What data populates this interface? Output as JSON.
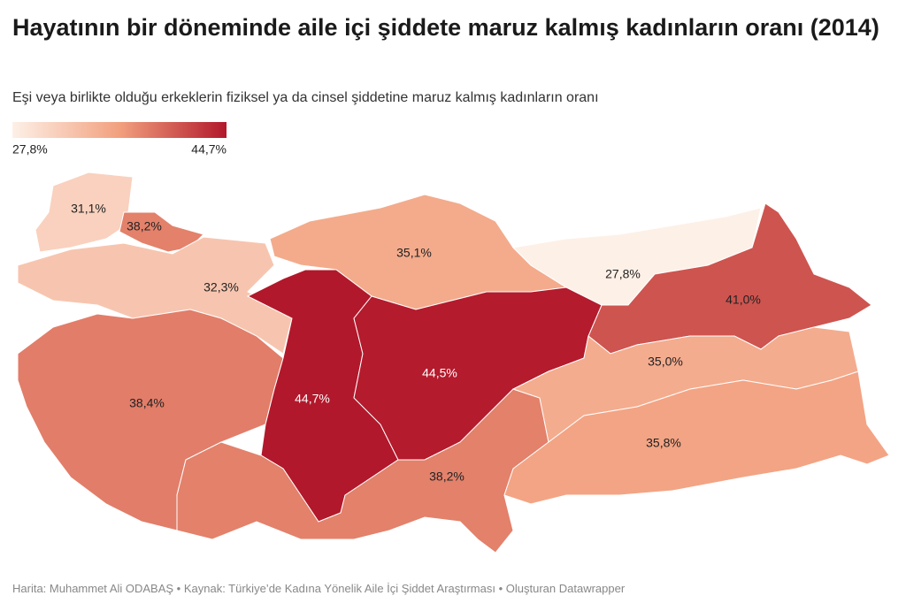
{
  "chart_data": {
    "type": "choropleth",
    "title": "Hayatının bir döneminde aile içi şiddete maruz kalmış kadınların oranı (2014)",
    "subtitle": "Eşi veya birlikte olduğu erkeklerin fiziksel ya da cinsel şiddetine maruz kalmış kadınların oranı",
    "colorlim": [
      27.8,
      44.7
    ],
    "colorticks": [
      {
        "value": 27.8,
        "label": "27,8%"
      },
      {
        "value": 44.7,
        "label": "44,7%"
      }
    ],
    "colors": [
      "#fdf0e7",
      "#f2a07e",
      "#b2182b"
    ],
    "values": [
      31.1,
      38.2,
      32.3,
      35.1,
      27.8,
      41.0,
      38.4,
      44.7,
      44.5,
      38.2,
      35.0,
      35.8
    ],
    "value_labels": [
      "31,1%",
      "38,2%",
      "32,3%",
      "35,1%",
      "27,8%",
      "41,0%",
      "38,4%",
      "44,7%",
      "44,5%",
      "38,2%",
      "35,0%",
      "35,8%"
    ],
    "source": "Harita: Muhammet Ali ODABAŞ • Kaynak: Türkiye’de Kadına Yönelik Aile İçi Şiddet Araştırması • Oluşturan Datawrapper"
  }
}
